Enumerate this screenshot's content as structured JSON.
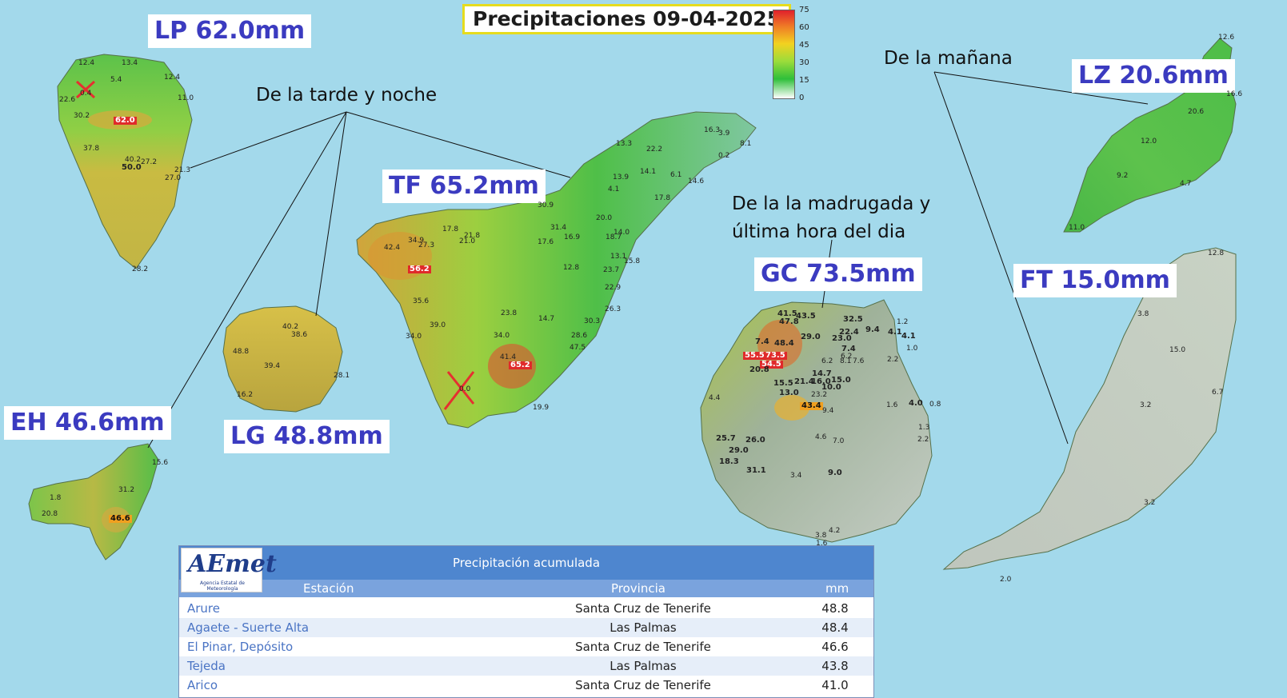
{
  "title": "Precipitaciones 09-04-2025",
  "legend": {
    "ticks": [
      "75",
      "60",
      "45",
      "30",
      "15",
      "0"
    ]
  },
  "island_labels": {
    "lp": "LP 62.0mm",
    "tf": "TF 65.2mm",
    "lz": "LZ 20.6mm",
    "ft": "FT 15.0mm",
    "gc": "GC 73.5mm",
    "eh": "EH 46.6mm",
    "lg": "LG 48.8mm"
  },
  "notes": {
    "tarde": "De la tarde y noche",
    "manana": "De la mañana",
    "madrugada_1": "De la la madrugada y",
    "madrugada_2": "última hora del dia"
  },
  "station_values": {
    "lp": [
      "12.4",
      "13.4",
      "5.4",
      "12.4",
      "11.0",
      "22.6",
      "0.4",
      "30.2",
      "62.0",
      "37.8",
      "40.2",
      "50.0",
      "27.2",
      "21.3",
      "27.0",
      "28.2"
    ],
    "tf": [
      "16.3",
      "3.9",
      "8.1",
      "13.3",
      "22.2",
      "0.2",
      "14.1",
      "6.1",
      "14.6",
      "13.9",
      "4.1",
      "17.8",
      "30.9",
      "31.4",
      "20.0",
      "17.8",
      "21.8",
      "21.0",
      "17.6",
      "16.9",
      "18.7",
      "14.0",
      "34.9",
      "42.4",
      "27.3",
      "13.1",
      "15.8",
      "56.2",
      "12.8",
      "23.7",
      "22.9",
      "35.6",
      "26.3",
      "23.8",
      "14.7",
      "39.0",
      "30.3",
      "34.0",
      "34.0",
      "28.6",
      "41.4",
      "47.5",
      "65.2",
      "0.0",
      "19.9"
    ],
    "lg": [
      "40.2",
      "38.6",
      "48.8",
      "39.4",
      "28.1",
      "16.2"
    ],
    "eh": [
      "15.6",
      "1.8",
      "31.2",
      "20.8",
      "46.6"
    ],
    "gc": [
      "41.5",
      "43.5",
      "47.8",
      "32.5",
      "22.4",
      "9.4",
      "4.1",
      "4.1",
      "1.2",
      "29.0",
      "23.0",
      "48.4",
      "1.0",
      "7.4",
      "55.5",
      "73.5",
      "7.4",
      "6.2",
      "6.2",
      "8.1",
      "7.6",
      "54.5",
      "2.2",
      "20.8",
      "14.7",
      "15.5",
      "21.4",
      "16.0",
      "15.0",
      "10.0",
      "13.0",
      "23.2",
      "4.4",
      "43.4",
      "9.4",
      "1.6",
      "4.0",
      "0.8",
      "1.3",
      "25.7",
      "26.0",
      "4.6",
      "7.0",
      "29.0",
      "2.2",
      "18.3",
      "31.1",
      "3.4",
      "9.0",
      "3.8",
      "4.2",
      "1.6"
    ],
    "lz": [
      "12.6",
      "16.6",
      "20.6",
      "12.0",
      "9.2",
      "4.7",
      "11.0"
    ],
    "ft": [
      "12.8",
      "3.8",
      "15.0",
      "3.2",
      "6.7",
      "3.2",
      "2.0"
    ]
  },
  "table": {
    "logo": "AEmet",
    "logo_sub": "Agencia Estatal de Meteorología",
    "title": "Precipitación acumulada",
    "headers": [
      "Estación",
      "Provincia",
      "mm"
    ],
    "rows": [
      {
        "station": "Arure",
        "province": "Santa Cruz de Tenerife",
        "mm": "48.8"
      },
      {
        "station": "Agaete - Suerte Alta",
        "province": "Las Palmas",
        "mm": "48.4"
      },
      {
        "station": "El Pinar, Depósito",
        "province": "Santa Cruz de Tenerife",
        "mm": "46.6"
      },
      {
        "station": "Tejeda",
        "province": "Las Palmas",
        "mm": "43.8"
      },
      {
        "station": "Arico",
        "province": "Santa Cruz de Tenerife",
        "mm": "41.0"
      }
    ]
  },
  "colors": {
    "sea": "#a3d9eb",
    "label_text": "#3b3bc0",
    "title_border": "#e6dc1e",
    "table_header": "#4e86cf",
    "station_link": "#4a74c4"
  }
}
